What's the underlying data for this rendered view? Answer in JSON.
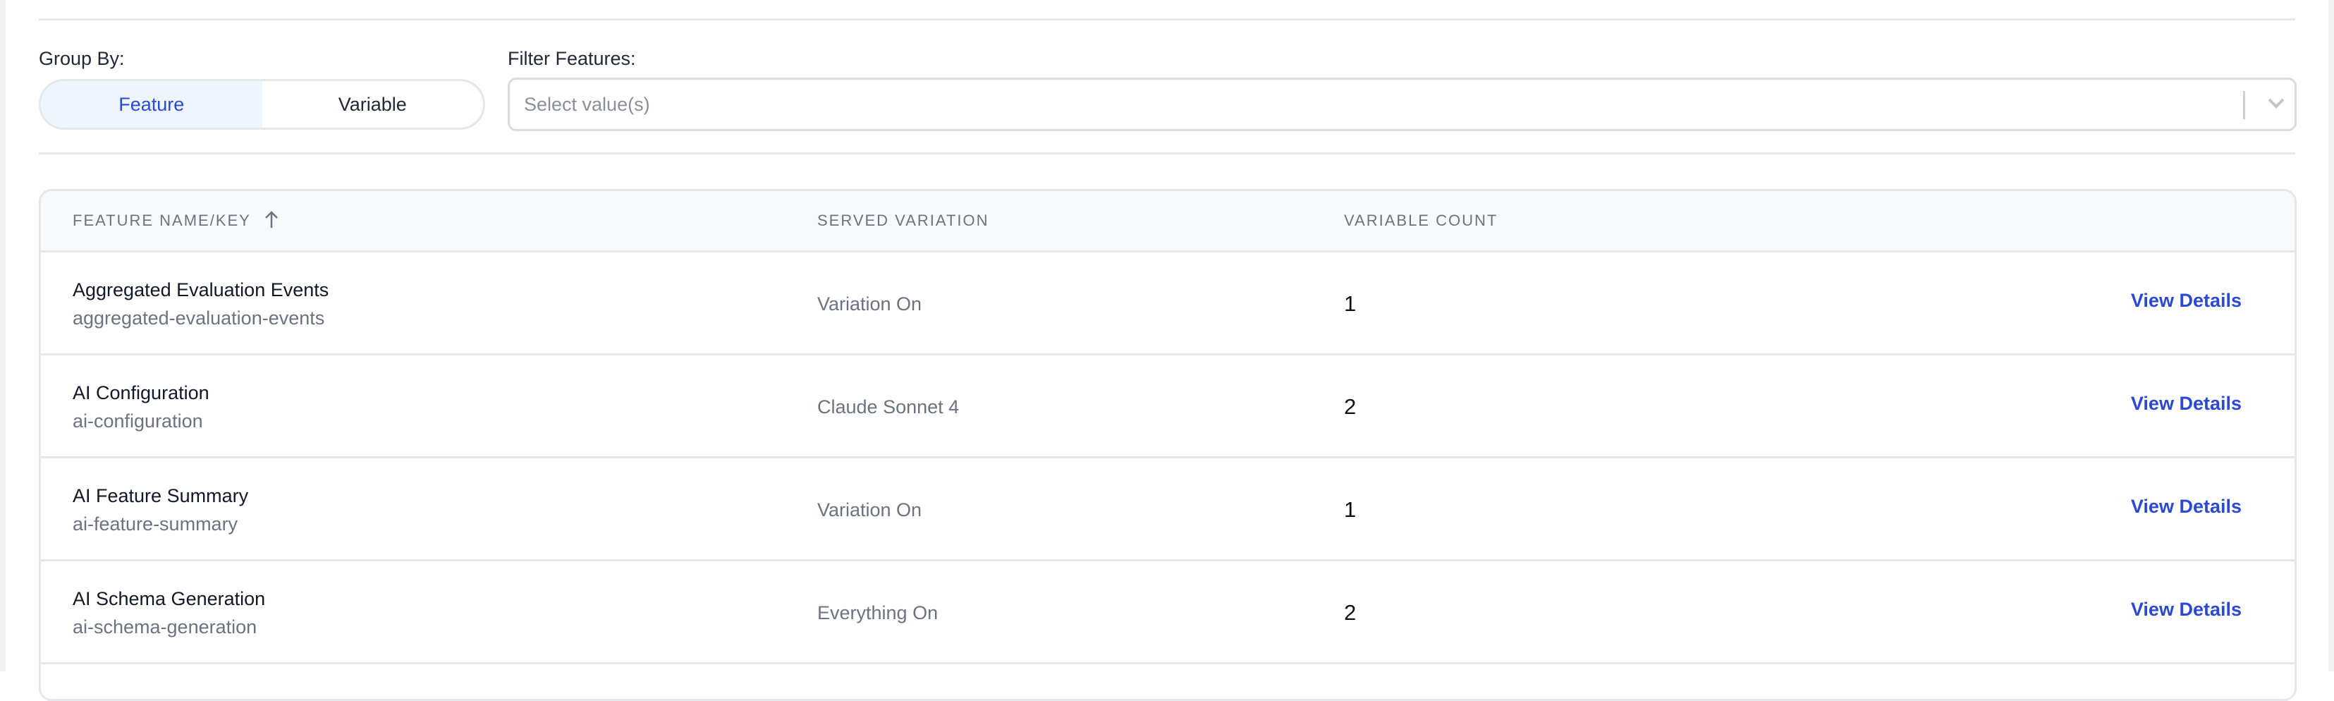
{
  "group_by": {
    "label": "Group By:",
    "options": [
      "Feature",
      "Variable"
    ],
    "selected": "Feature"
  },
  "filter": {
    "label": "Filter Features:",
    "placeholder": "Select value(s)"
  },
  "table": {
    "headers": [
      "FEATURE NAME/KEY",
      "SERVED VARIATION",
      "VARIABLE COUNT"
    ],
    "sort_icon": "arrow-up-icon",
    "rows": [
      {
        "name": "Aggregated Evaluation Events",
        "key": "aggregated-evaluation-events",
        "served": "Variation On",
        "count": "1",
        "action": "View Details"
      },
      {
        "name": "AI Configuration",
        "key": "ai-configuration",
        "served": "Claude Sonnet 4",
        "count": "2",
        "action": "View Details"
      },
      {
        "name": "AI Feature Summary",
        "key": "ai-feature-summary",
        "served": "Variation On",
        "count": "1",
        "action": "View Details"
      },
      {
        "name": "AI Schema Generation",
        "key": "ai-schema-generation",
        "served": "Everything On",
        "count": "2",
        "action": "View Details"
      }
    ]
  },
  "colors": {
    "accent": "#2b48d6",
    "selected_bg": "#eff5fe",
    "border": "#e5e7eb"
  }
}
